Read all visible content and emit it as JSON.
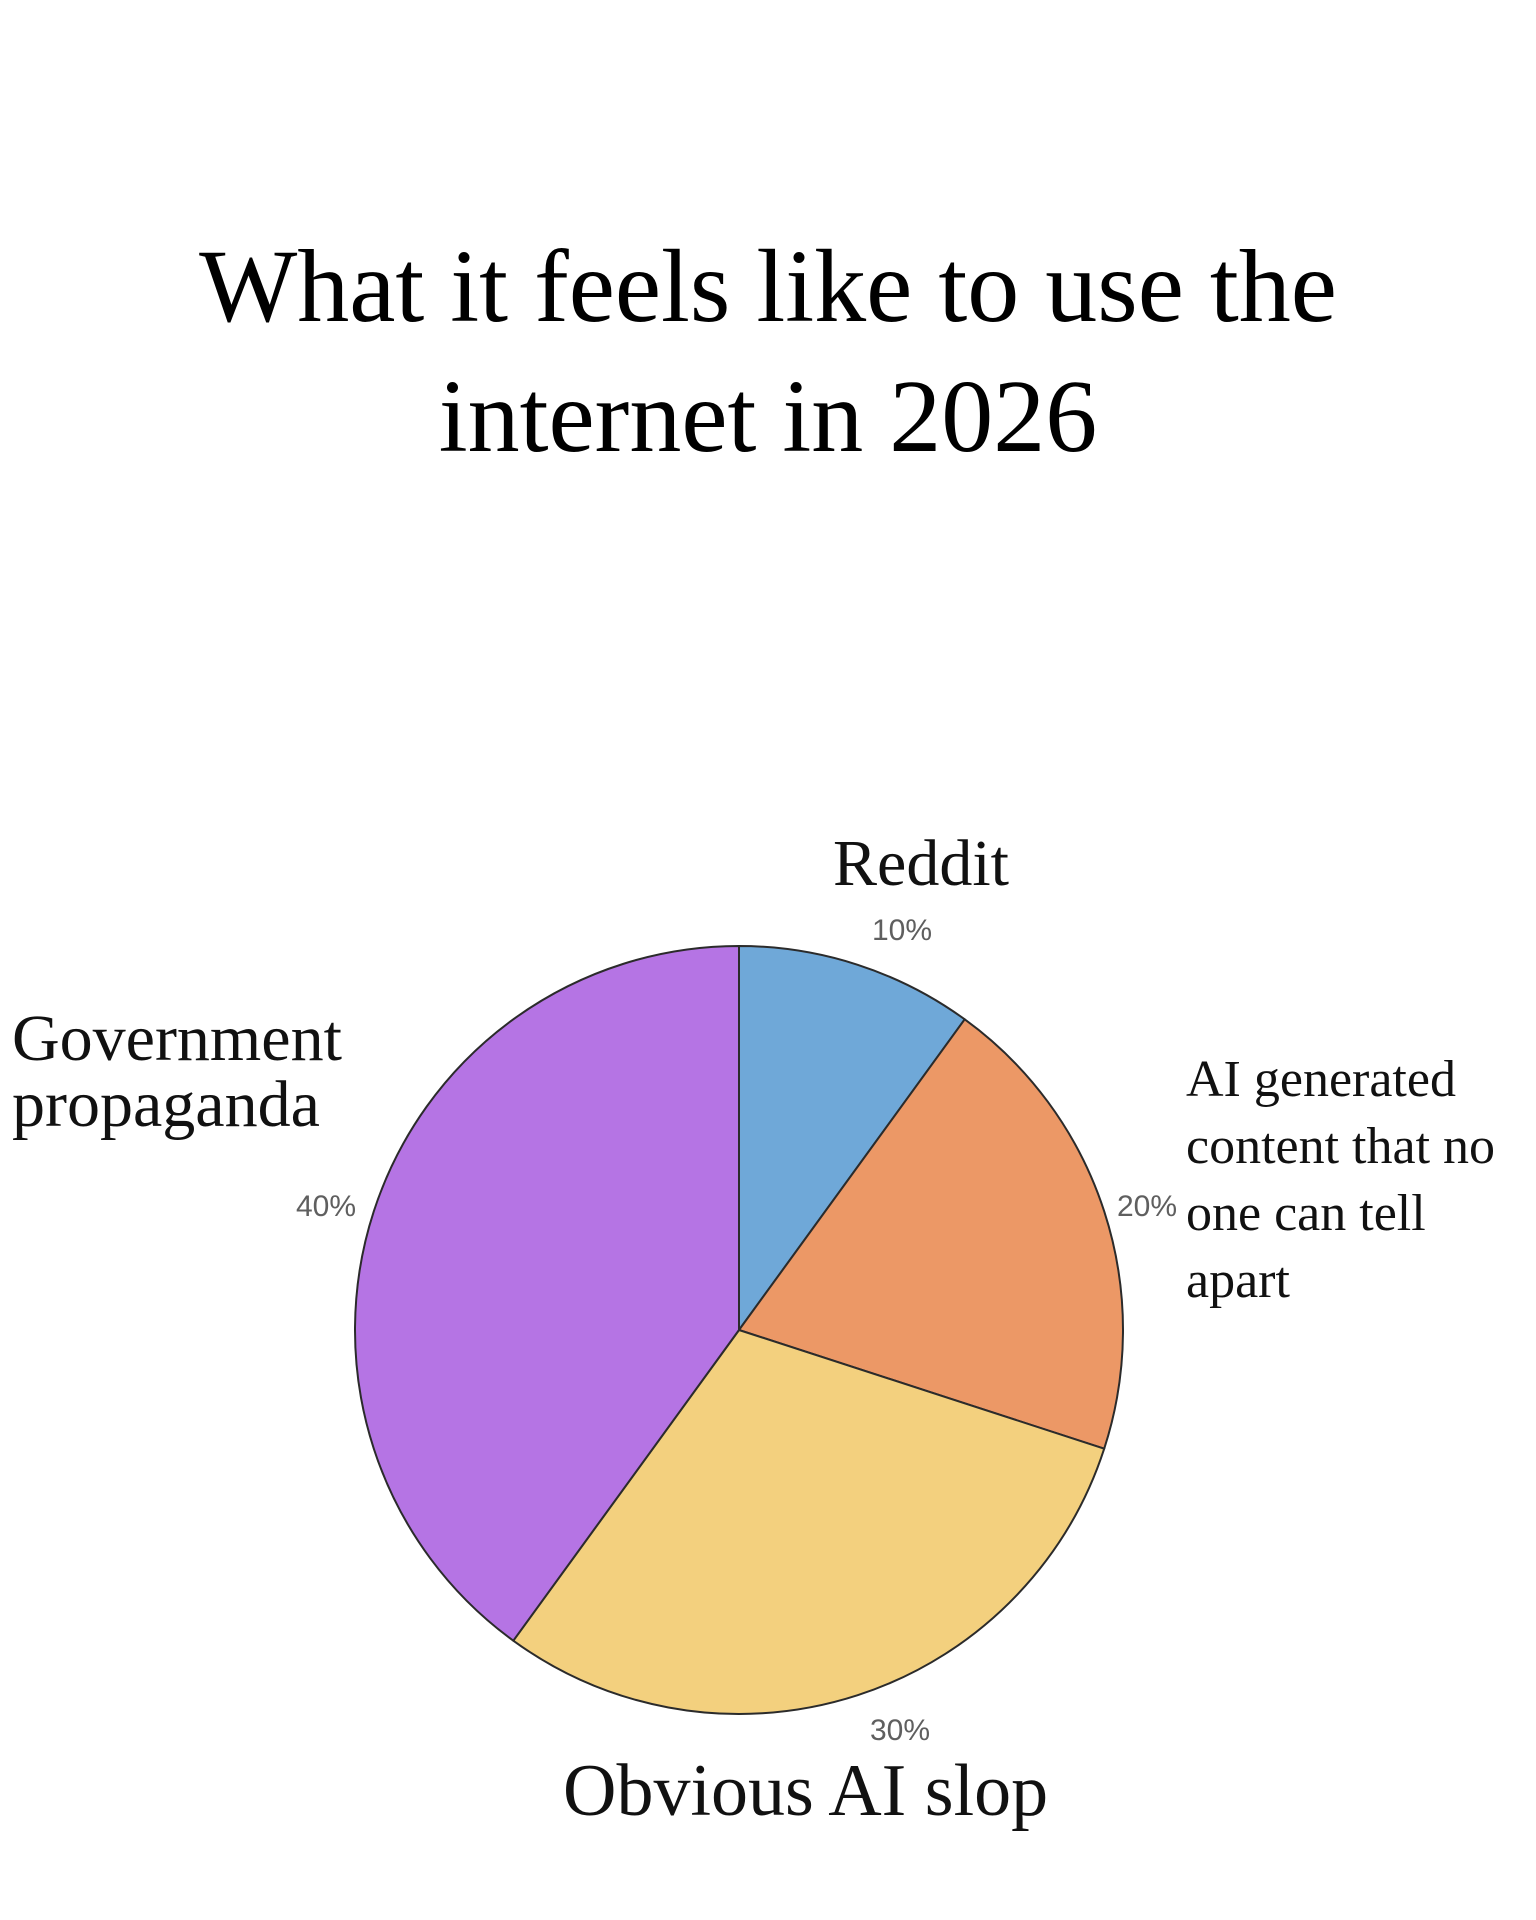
{
  "title_lines": [
    "What it feels like to use the",
    "internet in 2026"
  ],
  "chart_data": {
    "type": "pie",
    "title": "What it feels like to use the internet in 2026",
    "slices": [
      {
        "label": "Reddit",
        "label_lines": [
          "Reddit"
        ],
        "value": 10,
        "pct_label": "10%",
        "color": "#6fa8d8"
      },
      {
        "label": "AI generated content that no one can tell apart",
        "label_lines": [
          "AI generated",
          "content that no",
          "one can tell",
          "apart"
        ],
        "value": 20,
        "pct_label": "20%",
        "color": "#ec9866"
      },
      {
        "label": "Obvious AI slop",
        "label_lines": [
          "Obvious AI slop"
        ],
        "value": 30,
        "pct_label": "30%",
        "color": "#f3d07e"
      },
      {
        "label": "Government propaganda",
        "label_lines": [
          "Government",
          "propaganda"
        ],
        "value": 40,
        "pct_label": "40%",
        "color": "#b574e4"
      }
    ],
    "start": "12 o'clock",
    "direction": "clockwise",
    "legend": "none"
  }
}
